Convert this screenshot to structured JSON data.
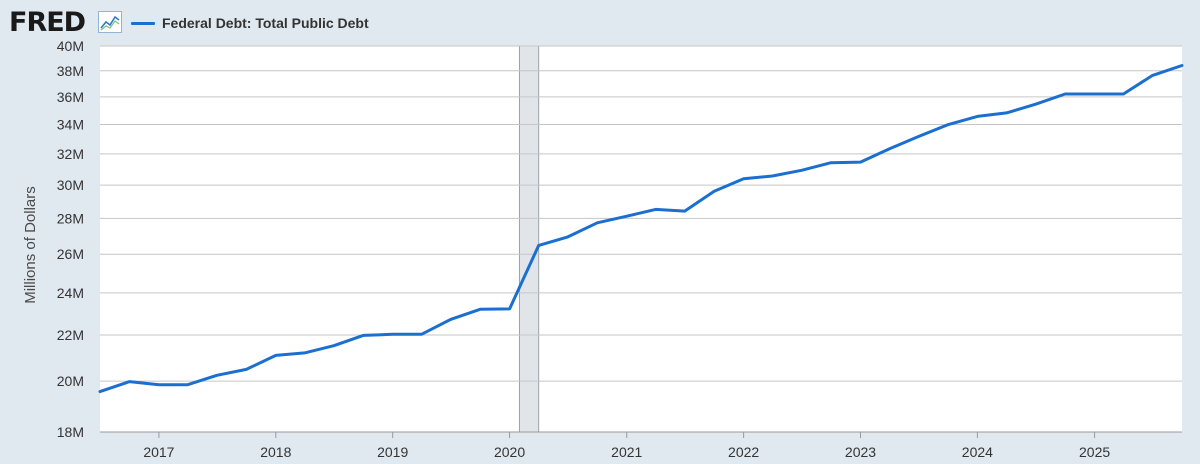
{
  "header": {
    "logo_text": "FRED",
    "logo_icon": "line-chart-icon",
    "legend_label": "Federal Debt: Total Public Debt",
    "legend_color": "#1b6fd1"
  },
  "chart_data": {
    "type": "line",
    "title": "",
    "xlabel": "",
    "ylabel": "Millions of Dollars",
    "y_scale": "log",
    "ylim": [
      18000000,
      40000000
    ],
    "xlim": [
      "2016-07-01",
      "2025-10-01"
    ],
    "yticks": [
      {
        "value": 18000000,
        "label": "18M"
      },
      {
        "value": 20000000,
        "label": "20M"
      },
      {
        "value": 22000000,
        "label": "22M"
      },
      {
        "value": 24000000,
        "label": "24M"
      },
      {
        "value": 26000000,
        "label": "26M"
      },
      {
        "value": 28000000,
        "label": "28M"
      },
      {
        "value": 30000000,
        "label": "30M"
      },
      {
        "value": 32000000,
        "label": "32M"
      },
      {
        "value": 34000000,
        "label": "34M"
      },
      {
        "value": 36000000,
        "label": "36M"
      },
      {
        "value": 38000000,
        "label": "38M"
      },
      {
        "value": 40000000,
        "label": "40M"
      }
    ],
    "xticks": [
      {
        "date": "2017-01-01",
        "label": "2017"
      },
      {
        "date": "2018-01-01",
        "label": "2018"
      },
      {
        "date": "2019-01-01",
        "label": "2019"
      },
      {
        "date": "2020-01-01",
        "label": "2020"
      },
      {
        "date": "2021-01-01",
        "label": "2021"
      },
      {
        "date": "2022-01-01",
        "label": "2022"
      },
      {
        "date": "2023-01-01",
        "label": "2023"
      },
      {
        "date": "2024-01-01",
        "label": "2024"
      },
      {
        "date": "2025-01-01",
        "label": "2025"
      }
    ],
    "recession": {
      "start": "2020-02-01",
      "end": "2020-04-01"
    },
    "grid": true,
    "legend_position": "top-left",
    "series": [
      {
        "name": "Federal Debt: Total Public Debt",
        "color": "#1b6fd1",
        "points": [
          {
            "x": "2016-07-01",
            "y": 19570000
          },
          {
            "x": "2016-10-01",
            "y": 19980000
          },
          {
            "x": "2017-01-01",
            "y": 19850000
          },
          {
            "x": "2017-04-01",
            "y": 19850000
          },
          {
            "x": "2017-07-01",
            "y": 20240000
          },
          {
            "x": "2017-10-01",
            "y": 20490000
          },
          {
            "x": "2018-01-01",
            "y": 21090000
          },
          {
            "x": "2018-04-01",
            "y": 21200000
          },
          {
            "x": "2018-07-01",
            "y": 21520000
          },
          {
            "x": "2018-10-01",
            "y": 21980000
          },
          {
            "x": "2019-01-01",
            "y": 22030000
          },
          {
            "x": "2019-04-01",
            "y": 22030000
          },
          {
            "x": "2019-07-01",
            "y": 22720000
          },
          {
            "x": "2019-10-01",
            "y": 23200000
          },
          {
            "x": "2020-01-01",
            "y": 23220000
          },
          {
            "x": "2020-04-01",
            "y": 26480000
          },
          {
            "x": "2020-07-01",
            "y": 26950000
          },
          {
            "x": "2020-10-01",
            "y": 27750000
          },
          {
            "x": "2021-01-01",
            "y": 28130000
          },
          {
            "x": "2021-04-01",
            "y": 28530000
          },
          {
            "x": "2021-07-01",
            "y": 28430000
          },
          {
            "x": "2021-10-01",
            "y": 29620000
          },
          {
            "x": "2022-01-01",
            "y": 30400000
          },
          {
            "x": "2022-04-01",
            "y": 30570000
          },
          {
            "x": "2022-07-01",
            "y": 30930000
          },
          {
            "x": "2022-10-01",
            "y": 31420000
          },
          {
            "x": "2023-01-01",
            "y": 31460000
          },
          {
            "x": "2023-04-01",
            "y": 32330000
          },
          {
            "x": "2023-07-01",
            "y": 33170000
          },
          {
            "x": "2023-10-01",
            "y": 33990000
          },
          {
            "x": "2024-01-01",
            "y": 34580000
          },
          {
            "x": "2024-04-01",
            "y": 34830000
          },
          {
            "x": "2024-07-01",
            "y": 35460000
          },
          {
            "x": "2024-10-01",
            "y": 36220000
          },
          {
            "x": "2025-01-01",
            "y": 36220000
          },
          {
            "x": "2025-04-01",
            "y": 36220000
          },
          {
            "x": "2025-07-01",
            "y": 37640000
          },
          {
            "x": "2025-10-01",
            "y": 38420000
          }
        ]
      }
    ]
  }
}
